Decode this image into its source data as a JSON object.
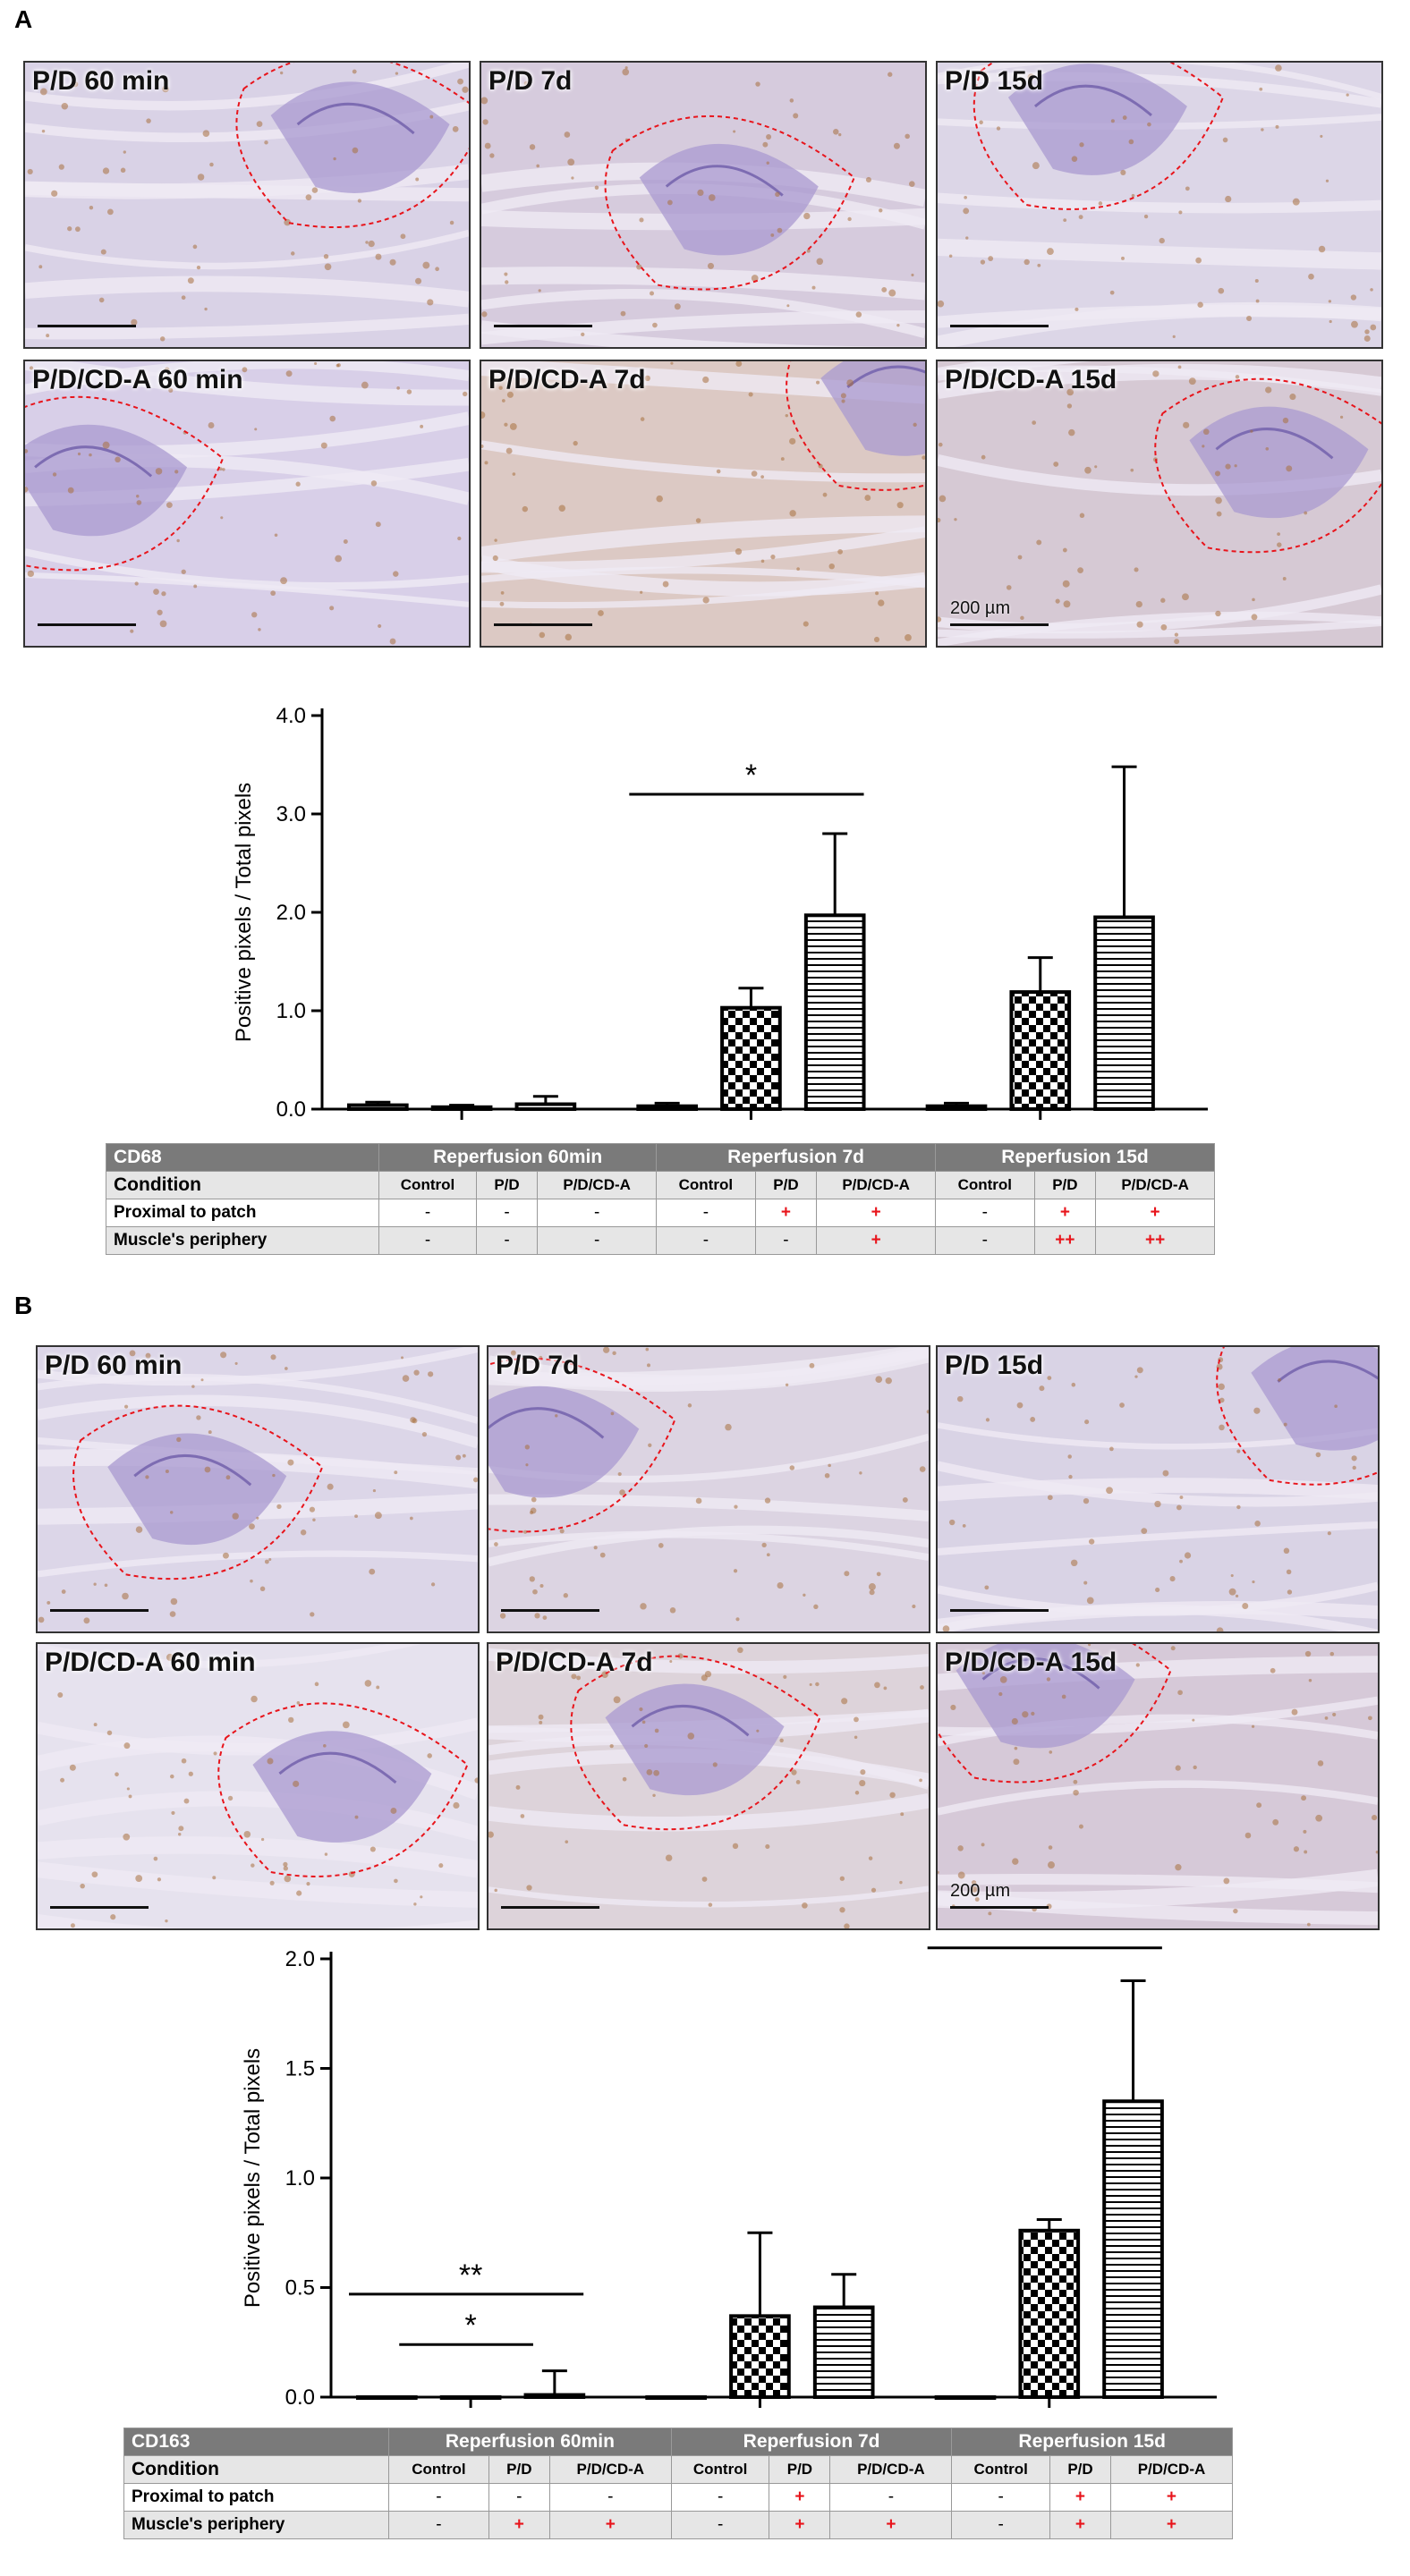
{
  "panel_a": {
    "letter": "A",
    "images": [
      {
        "label": "P/D 60 min",
        "tone": "#d9d2e6"
      },
      {
        "label": "P/D 7d",
        "tone": "#d6cbdd"
      },
      {
        "label": "P/D 15d",
        "tone": "#dcd6e7"
      },
      {
        "label": "P/D/CD-A 60 min",
        "tone": "#d8cfe8"
      },
      {
        "label": "P/D/CD-A 7d",
        "tone": "#dcc9c4"
      },
      {
        "label": "P/D/CD-A 15d",
        "tone": "#d6c9d4"
      }
    ],
    "scale_label": "200 µm",
    "chart_data": {
      "type": "bar",
      "ylabel": "Positive pixels / Total pixels",
      "ylim": [
        0,
        4.0
      ],
      "yticks": [
        "0.0",
        "1.0",
        "2.0",
        "3.0",
        "4.0"
      ],
      "groups": [
        "Reperfusion 60min",
        "Reperfusion 7d",
        "Reperfusion 15d"
      ],
      "series": [
        "Control",
        "P/D",
        "P/D/CD-A"
      ],
      "values": [
        [
          0.04,
          0.02,
          0.05
        ],
        [
          0.03,
          1.03,
          1.97
        ],
        [
          0.03,
          1.19,
          1.95
        ]
      ],
      "errors": [
        [
          0.03,
          0.02,
          0.08
        ],
        [
          0.03,
          0.2,
          0.83
        ],
        [
          0.03,
          0.35,
          1.53
        ]
      ],
      "significance": [
        {
          "group": 1,
          "from": 0,
          "to": 2,
          "label": "*",
          "y": 3.2
        }
      ]
    },
    "table": {
      "marker": "CD68",
      "groups": [
        "Reperfusion 60min",
        "Reperfusion 7d",
        "Reperfusion 15d"
      ],
      "condition_label": "Condition",
      "conditions": [
        "Control",
        "P/D",
        "P/D/CD-A",
        "Control",
        "P/D",
        "P/D/CD-A",
        "Control",
        "P/D",
        "P/D/CD-A"
      ],
      "rows": [
        {
          "label": "Proximal to patch",
          "values": [
            "-",
            "-",
            "-",
            "-",
            "+",
            "+",
            "-",
            "+",
            "+"
          ]
        },
        {
          "label": "Muscle's periphery",
          "values": [
            "-",
            "-",
            "-",
            "-",
            "-",
            "+",
            "-",
            "++",
            "++"
          ]
        }
      ]
    }
  },
  "panel_b": {
    "letter": "B",
    "images": [
      {
        "label": "P/D 60 min",
        "tone": "#dcd6e8"
      },
      {
        "label": "P/D 7d",
        "tone": "#dcd4e2"
      },
      {
        "label": "P/D 15d",
        "tone": "#d9d3e5"
      },
      {
        "label": "P/D/CD-A 60 min",
        "tone": "#e6e2ee"
      },
      {
        "label": "P/D/CD-A 7d",
        "tone": "#ddd3da"
      },
      {
        "label": "P/D/CD-A 15d",
        "tone": "#d6c9d8"
      }
    ],
    "scale_label": "200 µm",
    "chart_data": {
      "type": "bar",
      "ylabel": "Positive pixels / Total pixels",
      "ylim": [
        0,
        2.0
      ],
      "yticks": [
        "0.0",
        "0.5",
        "1.0",
        "1.5",
        "2.0"
      ],
      "groups": [
        "Reperfusion 60min",
        "Reperfusion 7d",
        "Reperfusion 15d"
      ],
      "series": [
        "Control",
        "P/D",
        "P/D/CD-A"
      ],
      "values": [
        [
          0.0,
          0.0,
          0.01
        ],
        [
          0.0,
          0.37,
          0.41
        ],
        [
          0.0,
          0.76,
          1.35
        ]
      ],
      "errors": [
        [
          0.0,
          0.0,
          0.11
        ],
        [
          0.0,
          0.38,
          0.15
        ],
        [
          0.0,
          0.05,
          0.55
        ]
      ],
      "significance": [
        {
          "group": 0,
          "from": 0,
          "to": 2,
          "label": "**",
          "y": 0.47
        },
        {
          "group": 0,
          "from": 0.6,
          "to": 1.4,
          "label": "*",
          "y": 0.24
        },
        {
          "group": 2,
          "from": 0,
          "to": 2,
          "label": "**",
          "y": 2.05
        }
      ]
    },
    "table": {
      "marker": "CD163",
      "groups": [
        "Reperfusion 60min",
        "Reperfusion 7d",
        "Reperfusion 15d"
      ],
      "condition_label": "Condition",
      "conditions": [
        "Control",
        "P/D",
        "P/D/CD-A",
        "Control",
        "P/D",
        "P/D/CD-A",
        "Control",
        "P/D",
        "P/D/CD-A"
      ],
      "rows": [
        {
          "label": "Proximal to patch",
          "values": [
            "-",
            "-",
            "-",
            "-",
            "+",
            "-",
            "-",
            "+",
            "+"
          ]
        },
        {
          "label": "Muscle's periphery",
          "values": [
            "-",
            "+",
            "+",
            "-",
            "+",
            "+",
            "-",
            "+",
            "+"
          ]
        }
      ]
    }
  }
}
